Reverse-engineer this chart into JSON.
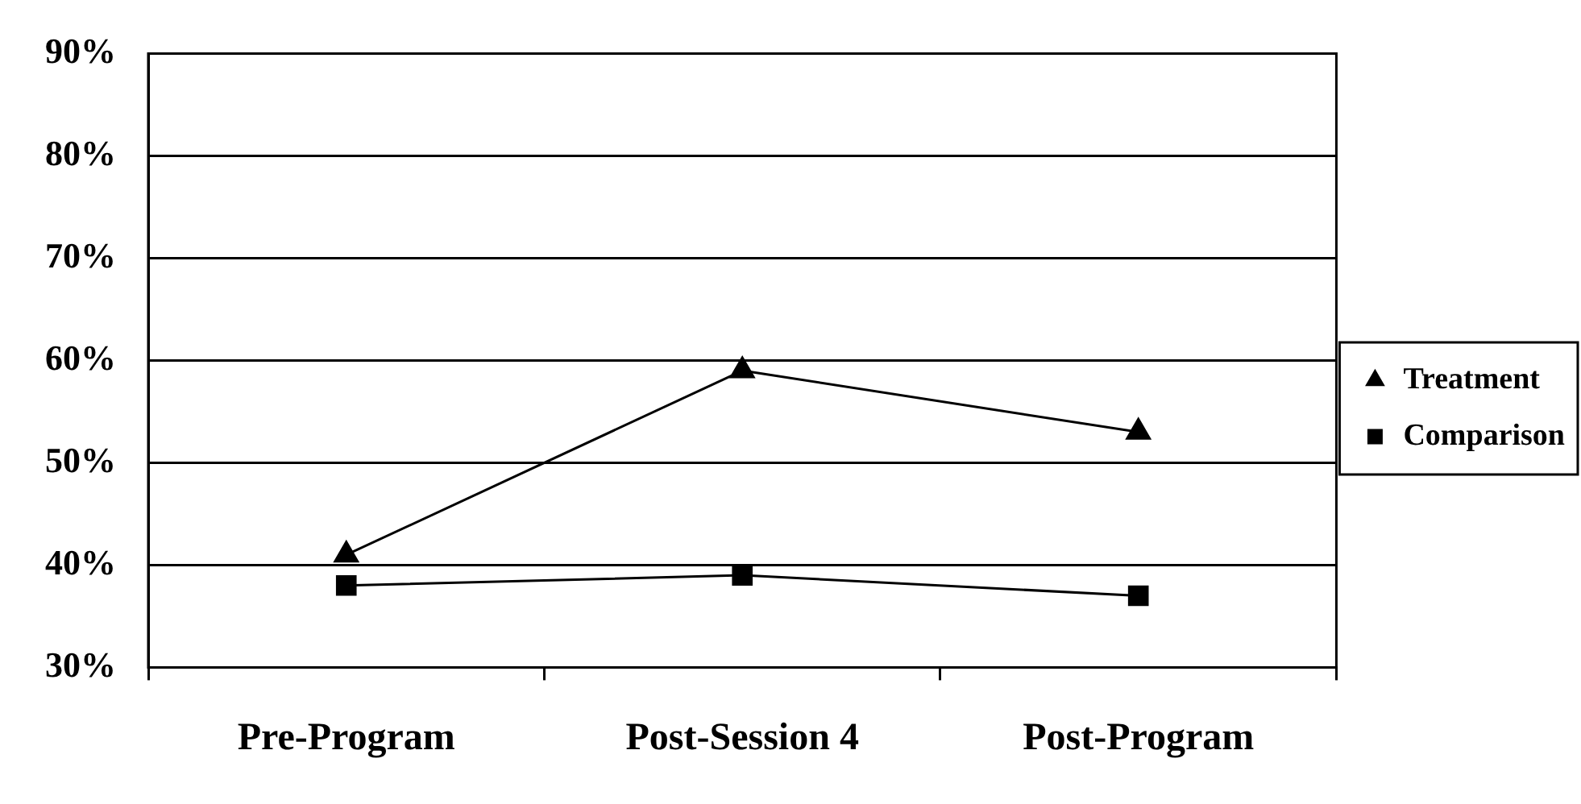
{
  "chart_data": {
    "type": "line",
    "categories": [
      "Pre-Program",
      "Post-Session 4",
      "Post-Program"
    ],
    "series": [
      {
        "name": "Treatment",
        "color": "#000000",
        "values": [
          41,
          59,
          53
        ],
        "marker": "triangle"
      },
      {
        "name": "Comparison",
        "color": "#000000",
        "values": [
          38,
          39,
          37
        ],
        "marker": "square"
      }
    ],
    "ylim": [
      30,
      90
    ],
    "yticks": [
      {
        "value": 30,
        "label": "30%"
      },
      {
        "value": 40,
        "label": "40%"
      },
      {
        "value": 50,
        "label": "50%"
      },
      {
        "value": 60,
        "label": "60%"
      },
      {
        "value": 70,
        "label": "70%"
      },
      {
        "value": 80,
        "label": "80%"
      },
      {
        "value": 90,
        "label": "90%"
      }
    ],
    "grid": "y",
    "legend": "right",
    "line_style": "solid"
  }
}
